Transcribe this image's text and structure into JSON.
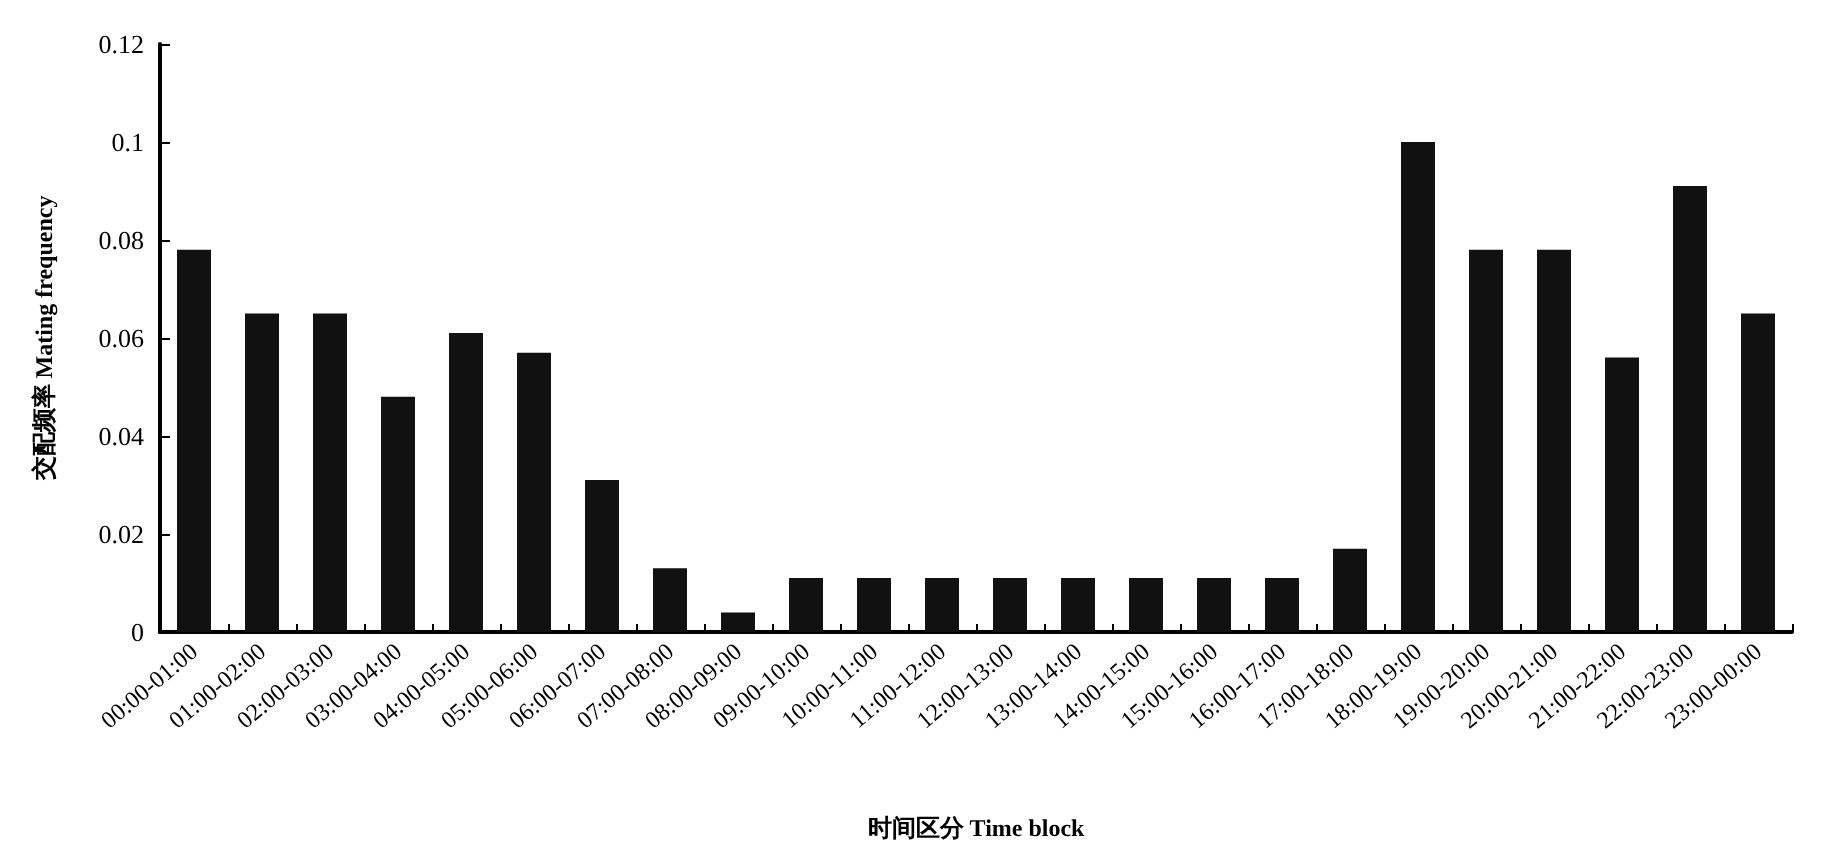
{
  "chart_data": {
    "type": "bar",
    "xlabel": "时间区分 Time block",
    "ylabel": "交配频率 Mating frequency",
    "categories": [
      "00:00-01:00",
      "01:00-02:00",
      "02:00-03:00",
      "03:00-04:00",
      "04:00-05:00",
      "05:00-06:00",
      "06:00-07:00",
      "07:00-08:00",
      "08:00-09:00",
      "09:00-10:00",
      "10:00-11:00",
      "11:00-12:00",
      "12:00-13:00",
      "13:00-14:00",
      "14:00-15:00",
      "15:00-16:00",
      "16:00-17:00",
      "17:00-18:00",
      "18:00-19:00",
      "19:00-20:00",
      "20:00-21:00",
      "21:00-22:00",
      "22:00-23:00",
      "23:00-00:00"
    ],
    "values": [
      0.078,
      0.065,
      0.065,
      0.048,
      0.061,
      0.057,
      0.031,
      0.013,
      0.004,
      0.011,
      0.011,
      0.011,
      0.011,
      0.011,
      0.011,
      0.011,
      0.011,
      0.017,
      0.1,
      0.078,
      0.078,
      0.056,
      0.091,
      0.065
    ],
    "color": "#111111",
    "ylim": [
      0,
      0.12
    ],
    "yticks": [
      0,
      0.02,
      0.04,
      0.06,
      0.08,
      0.1,
      0.12
    ],
    "grid": false
  }
}
